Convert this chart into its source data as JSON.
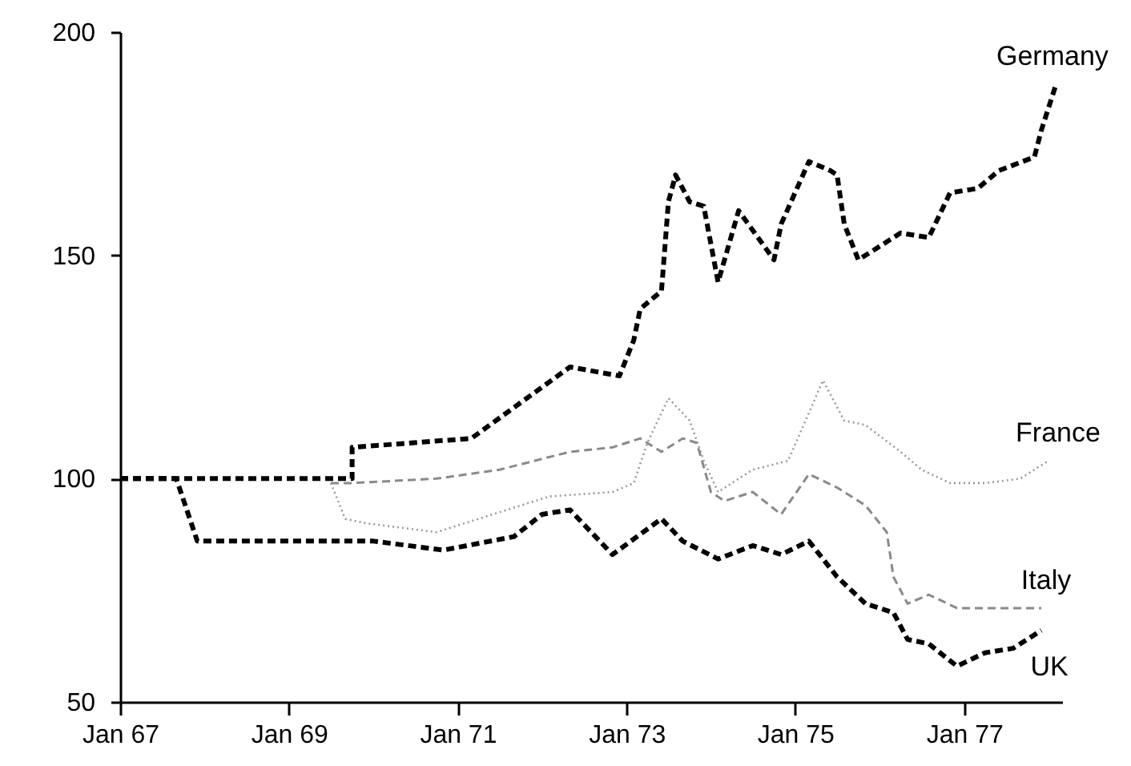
{
  "chart_data": {
    "type": "line",
    "xlim": [
      "1967-01",
      "1978-03"
    ],
    "ylim": [
      50,
      200
    ],
    "xticks": [
      {
        "value": "1967-01",
        "label": "Jan 67"
      },
      {
        "value": "1969-01",
        "label": "Jan 69"
      },
      {
        "value": "1971-01",
        "label": "Jan 71"
      },
      {
        "value": "1973-01",
        "label": "Jan 73"
      },
      {
        "value": "1975-01",
        "label": "Jan 75"
      },
      {
        "value": "1977-01",
        "label": "Jan 77"
      }
    ],
    "yticks": [
      50,
      100,
      150,
      200
    ],
    "grid": false,
    "marker": "none",
    "series": [
      {
        "name": "Germany",
        "color": "#000000",
        "line_style": "dashed",
        "x": [
          "1967-01",
          "1969-10",
          "1969-10",
          "1971-03",
          "1972-05",
          "1972-12",
          "1973-02",
          "1973-03",
          "1973-06",
          "1973-07",
          "1973-08",
          "1973-10",
          "1973-12",
          "1974-02",
          "1974-05",
          "1974-10",
          "1974-11",
          "1975-03",
          "1975-06",
          "1975-07",
          "1975-08",
          "1975-10",
          "1976-01",
          "1976-04",
          "1976-08",
          "1976-11",
          "1977-03",
          "1977-06",
          "1977-11",
          "1977-12",
          "1978-02"
        ],
        "values": [
          100,
          100,
          107,
          109,
          125,
          123,
          131,
          138,
          142,
          162,
          168,
          162,
          161,
          144,
          160,
          149,
          157,
          171,
          169,
          168,
          157,
          149,
          152,
          155,
          154,
          164,
          165,
          169,
          172,
          178,
          188
        ]
      },
      {
        "name": "France",
        "color": "#9a9a9a",
        "line_style": "dotted",
        "x": [
          "1969-07",
          "1969-09",
          "1969-12",
          "1970-10",
          "1972-02",
          "1972-11",
          "1973-02",
          "1973-04",
          "1973-07",
          "1973-10",
          "1973-12",
          "1974-02",
          "1974-07",
          "1974-12",
          "1975-05",
          "1975-08",
          "1975-11",
          "1976-04",
          "1976-07",
          "1976-11",
          "1977-04",
          "1977-09",
          "1978-01"
        ],
        "values": [
          99,
          91,
          90,
          88,
          96,
          97,
          99,
          108,
          118,
          113,
          104,
          97,
          102,
          104,
          122,
          113,
          112,
          106,
          102,
          99,
          99,
          100,
          104
        ]
      },
      {
        "name": "Italy",
        "color": "#8a8a8a",
        "line_style": "dashed",
        "x": [
          "1969-07",
          "1969-10",
          "1970-10",
          "1971-07",
          "1972-05",
          "1972-11",
          "1973-03",
          "1973-06",
          "1973-09",
          "1973-11",
          "1974-01",
          "1974-03",
          "1974-07",
          "1974-11",
          "1975-03",
          "1975-07",
          "1975-11",
          "1976-02",
          "1976-03",
          "1976-05",
          "1976-08",
          "1976-12",
          "1977-12"
        ],
        "values": [
          99,
          99,
          100,
          102,
          106,
          107,
          109,
          106,
          109,
          108,
          97,
          95,
          97,
          92,
          101,
          98,
          94,
          88,
          78,
          72,
          74,
          71,
          71
        ]
      },
      {
        "name": "UK",
        "color": "#000000",
        "line_style": "dashed",
        "x": [
          "1967-01",
          "1967-09",
          "1967-12",
          "1970-01",
          "1970-11",
          "1971-09",
          "1972-01",
          "1972-05",
          "1972-11",
          "1973-06",
          "1973-09",
          "1974-02",
          "1974-07",
          "1974-11",
          "1975-03",
          "1975-07",
          "1975-11",
          "1976-03",
          "1976-05",
          "1976-08",
          "1976-12",
          "1977-04",
          "1977-08",
          "1977-12"
        ],
        "values": [
          100,
          100,
          86,
          86,
          84,
          87,
          92,
          93,
          83,
          91,
          86,
          82,
          85,
          83,
          86,
          78,
          72,
          70,
          64,
          63,
          58,
          61,
          62,
          66
        ]
      }
    ]
  }
}
